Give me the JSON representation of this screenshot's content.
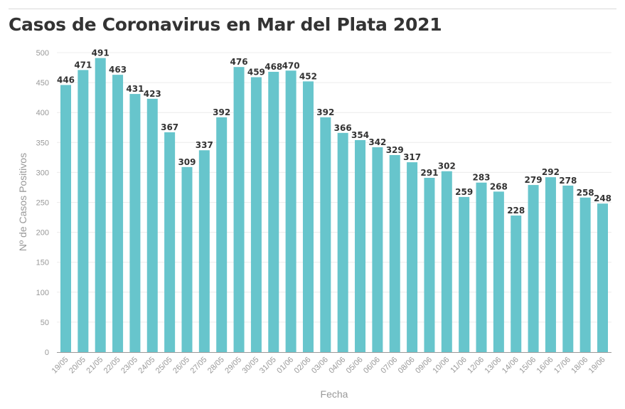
{
  "chart_data": {
    "type": "bar",
    "title": "Casos de Coronavirus en Mar del Plata 2021",
    "xlabel": "Fecha",
    "ylabel": "Nº de Casos Positivos",
    "ylim": [
      0,
      500
    ],
    "yticks": [
      0,
      50,
      100,
      150,
      200,
      250,
      300,
      350,
      400,
      450,
      500
    ],
    "grid": true,
    "bar_color": "#67c5cc",
    "categories": [
      "19/05",
      "20/05",
      "21/05",
      "22/05",
      "23/05",
      "24/05",
      "25/05",
      "26/05",
      "27/05",
      "28/05",
      "29/05",
      "30/05",
      "31/05",
      "01/06",
      "02/06",
      "03/06",
      "04/06",
      "05/06",
      "06/06",
      "07/06",
      "08/06",
      "09/06",
      "10/06",
      "11/06",
      "12/06",
      "13/06",
      "14/06",
      "15/06",
      "16/06",
      "17/06",
      "18/06",
      "19/06"
    ],
    "values": [
      446,
      471,
      491,
      463,
      431,
      423,
      367,
      309,
      337,
      392,
      476,
      459,
      468,
      470,
      452,
      392,
      366,
      354,
      342,
      329,
      317,
      291,
      302,
      259,
      283,
      268,
      228,
      279,
      292,
      278,
      258,
      248
    ]
  }
}
